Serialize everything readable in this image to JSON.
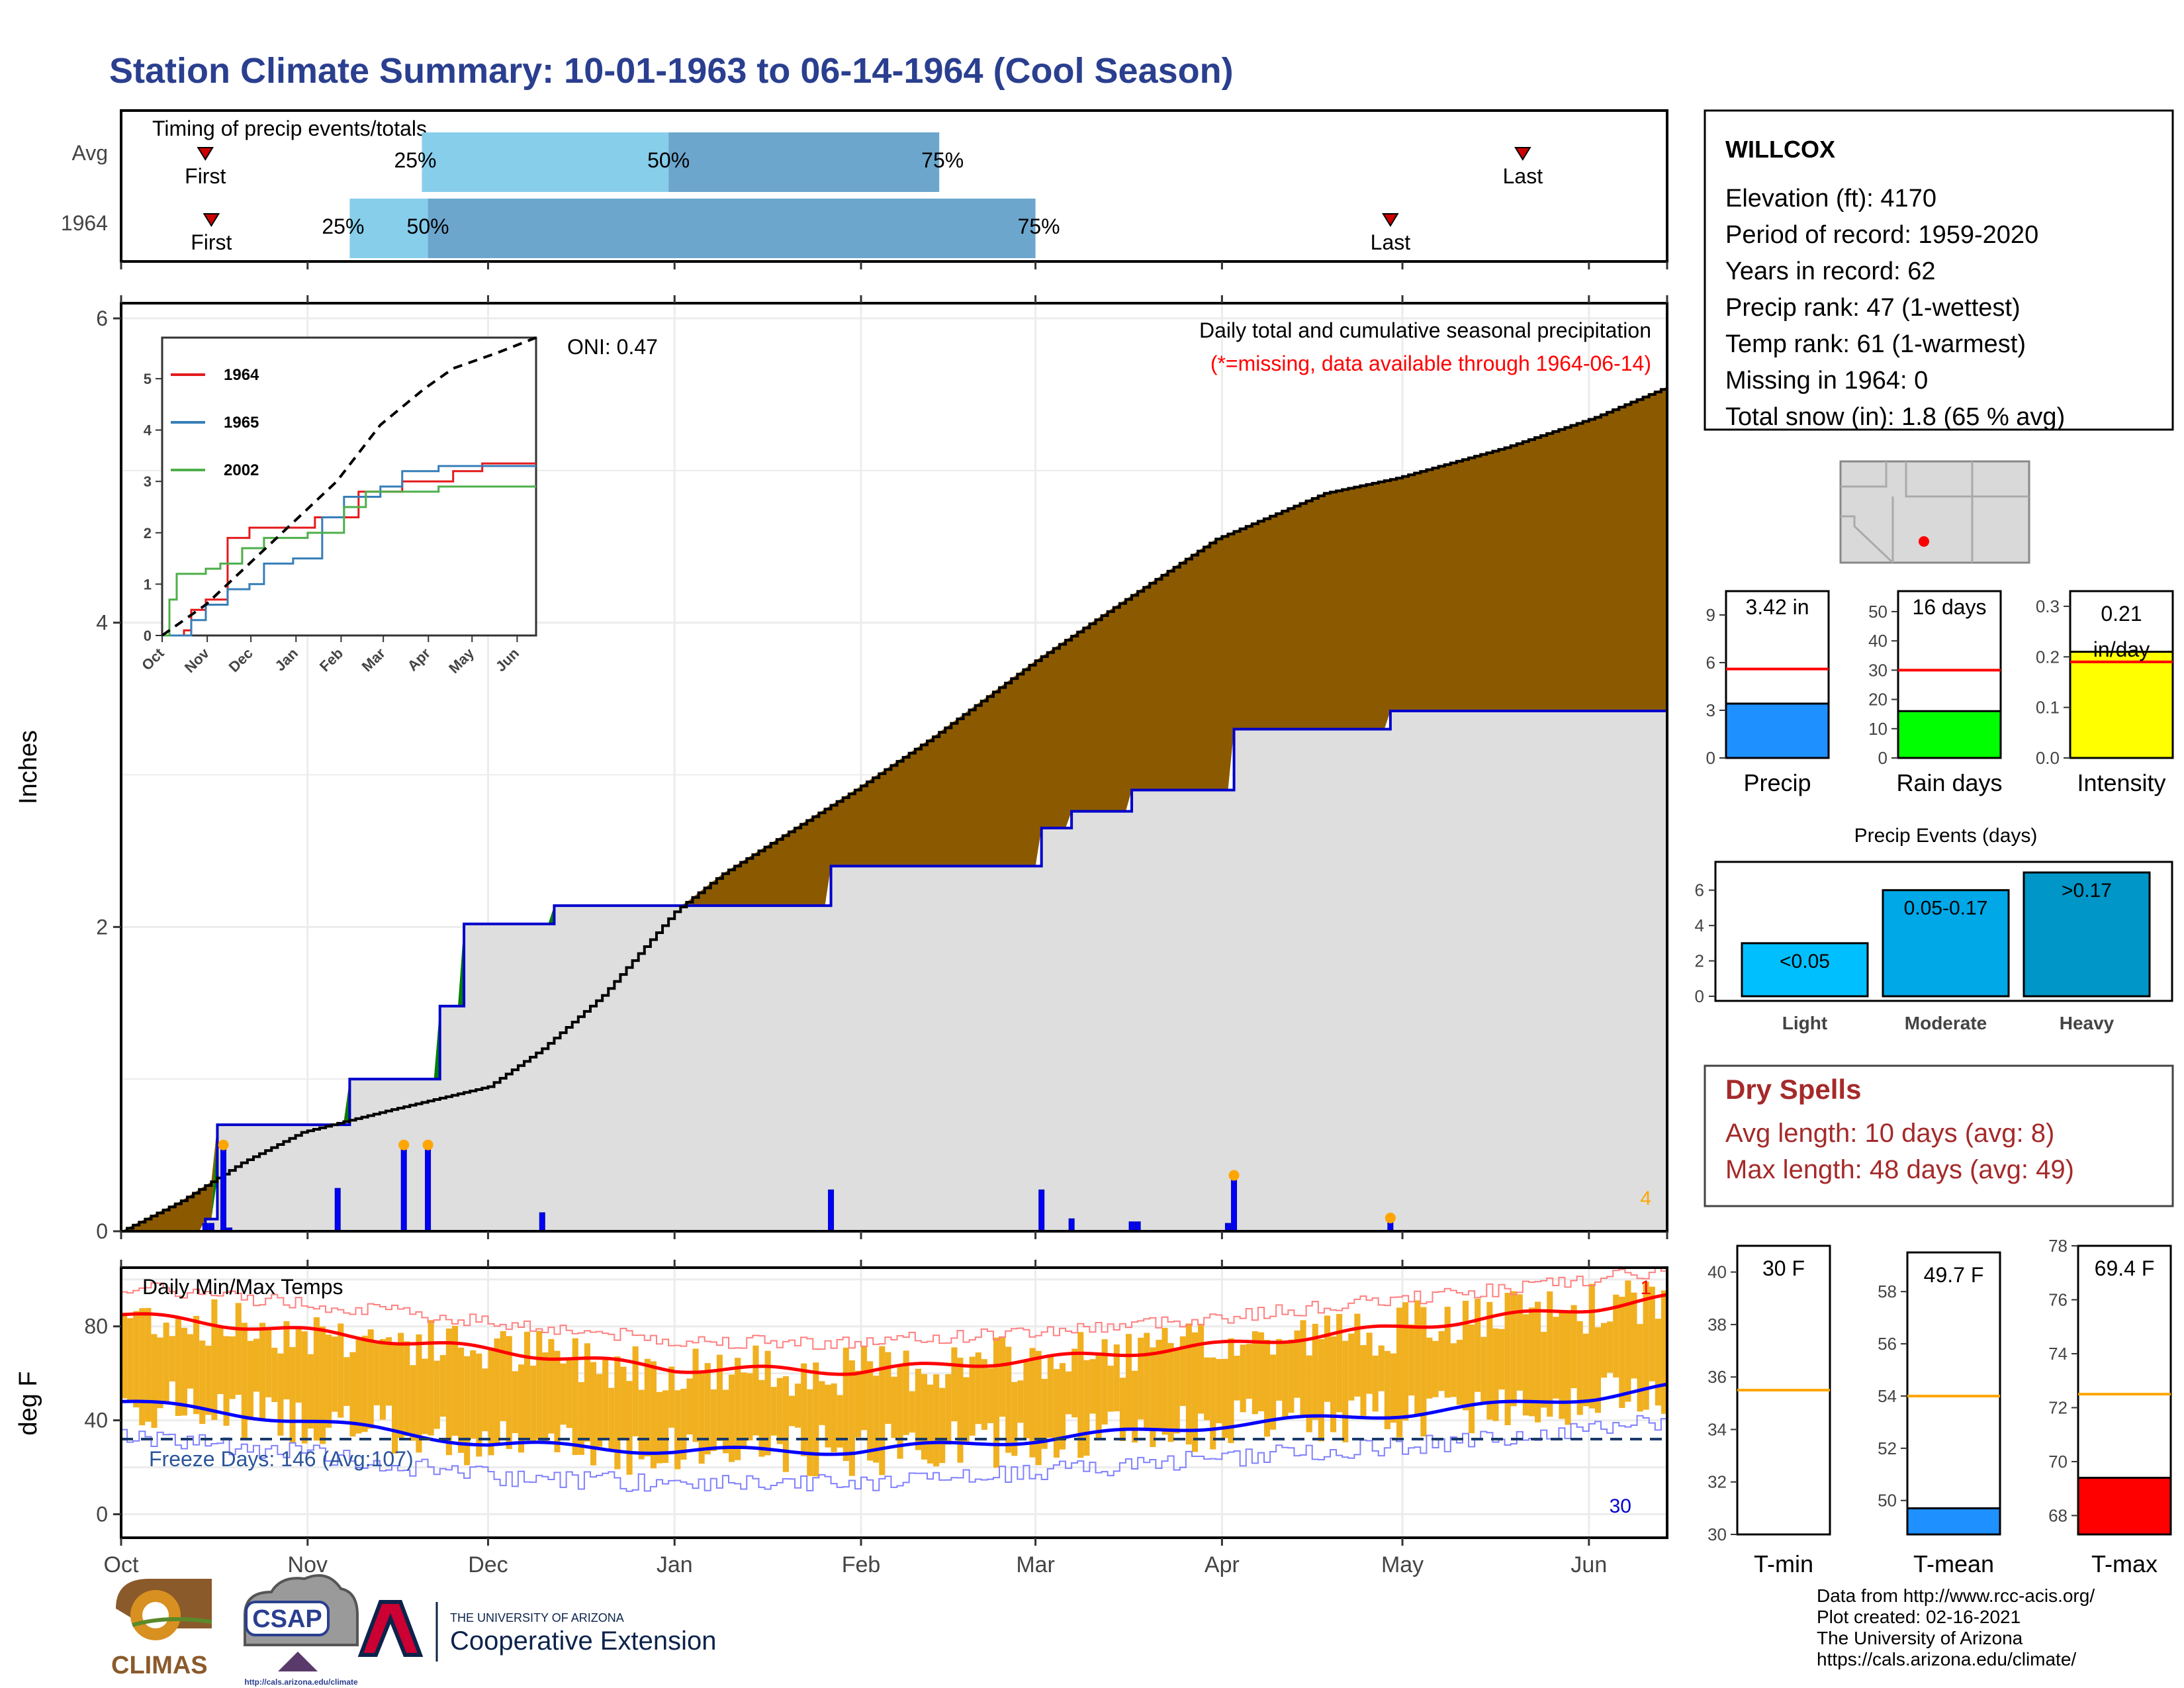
{
  "title": "Station Climate Summary: 10-01-1963 to 06-14-1964 (Cool Season)",
  "colors": {
    "title": "#2a3f8f",
    "precip_bar": "#1e90ff",
    "rain_bar": "#00ff00",
    "intensity_bar": "#ffff00",
    "avg_line": "#ff0000",
    "brown": "#8b5a00",
    "green": "#008000",
    "gray": "#dedede",
    "tmax": "#ff0000",
    "tmin": "#0000ff",
    "temp_bar": "#f0b020",
    "light": "#00bfff",
    "moderate": "#00a8e8",
    "heavy": "#0096c7",
    "tmean": "#1e90ff",
    "tmax_bar": "#ff0000",
    "ref_line": "#ffa500"
  },
  "timing": {
    "title": "Timing of precip events/totals",
    "rows": [
      {
        "label": "Avg",
        "first": "First",
        "last": "Last",
        "p25": "25%",
        "p50": "50%",
        "p75": "75%"
      },
      {
        "label": "1964",
        "first": "First",
        "last": "Last",
        "p25": "25%",
        "p50": "50%",
        "p75": "75%"
      }
    ]
  },
  "station": {
    "name": "WILLCOX",
    "lines": [
      "Elevation (ft): 4170",
      "Period of record: 1959-2020",
      "Years in record: 62",
      "Precip rank: 47 (1-wettest)",
      "Temp rank: 61 (1-warmest)",
      "Missing in 1964: 0",
      "Total snow (in): 1.8 (65 % avg)"
    ]
  },
  "precip_panel": {
    "ylabel": "Inches",
    "yticks": [
      "0",
      "2",
      "4",
      "6"
    ],
    "note1": "Daily total and cumulative seasonal precipitation",
    "note2": "(*=missing, data available through 1964-06-14)",
    "oni": "ONI: 0.47",
    "corner_count": "4"
  },
  "inset": {
    "yticks": [
      "0",
      "1",
      "2",
      "3",
      "4",
      "5"
    ],
    "xticks": [
      "Oct",
      "Nov",
      "Dec",
      "Jan",
      "Feb",
      "Mar",
      "Apr",
      "May",
      "Jun"
    ],
    "legend": [
      {
        "name": "1964",
        "color": "#e41a1c"
      },
      {
        "name": "1965",
        "color": "#377eb8"
      },
      {
        "name": "2002",
        "color": "#4daf4a"
      }
    ]
  },
  "temp_panel": {
    "ylabel": "deg F",
    "title": "Daily Min/Max Temps",
    "yticks": [
      "0",
      "40",
      "80"
    ],
    "freeze": "Freeze Days: 146 (Avg:107)",
    "count_max": "1",
    "count_min": "30"
  },
  "months": [
    "Oct",
    "Nov",
    "Dec",
    "Jan",
    "Feb",
    "Mar",
    "Apr",
    "May",
    "Jun"
  ],
  "mini_precip": [
    {
      "label": "Precip",
      "value_text": "3.42 in",
      "yticks": [
        "0",
        "3",
        "6",
        "9"
      ]
    },
    {
      "label": "Rain days",
      "value_text": "16 days",
      "yticks": [
        "0",
        "10",
        "20",
        "30",
        "40",
        "50"
      ]
    },
    {
      "label": "Intensity",
      "value_text": "0.21 in/day",
      "yticks": [
        "0.0",
        "0.1",
        "0.2",
        "0.3"
      ]
    }
  ],
  "events": {
    "title": "Precip Events (days)",
    "yticks": [
      "0",
      "2",
      "4",
      "6"
    ],
    "bars": [
      {
        "cat": "Light",
        "label": "<0.05"
      },
      {
        "cat": "Moderate",
        "label": "0.05-0.17"
      },
      {
        "cat": "Heavy",
        "label": ">0.17"
      }
    ]
  },
  "dry": {
    "title": "Dry Spells",
    "avg": "Avg length: 10 days (avg: 8)",
    "max": "Max length: 48 days (avg: 49)"
  },
  "mini_temp": [
    {
      "label": "T-min",
      "value_text": "30 F",
      "yticks": [
        "30",
        "32",
        "34",
        "36",
        "38",
        "40"
      ]
    },
    {
      "label": "T-mean",
      "value_text": "49.7 F",
      "yticks": [
        "50",
        "52",
        "54",
        "56",
        "58"
      ]
    },
    {
      "label": "T-max",
      "value_text": "69.4 F",
      "yticks": [
        "68",
        "70",
        "72",
        "74",
        "76",
        "78"
      ]
    }
  ],
  "footer": {
    "lines": [
      "Data from http://www.rcc-acis.org/",
      "Plot created: 02-16-2021",
      "The University of Arizona",
      "https://cals.arizona.edu/climate/"
    ]
  },
  "logos": {
    "climas": "CLIMAS",
    "csap": "CSAP",
    "csap_url": "http://cals.arizona.edu/climate",
    "ua_top": "THE UNIVERSITY OF ARIZONA",
    "ua_bottom": "Cooperative Extension"
  },
  "chart_data": [
    {
      "type": "area",
      "name": "timing",
      "rows": [
        {
          "label": "Avg",
          "first": "10-15",
          "p25": "11-20",
          "p50": "12-31",
          "p75": "02-14",
          "last": "05-21"
        },
        {
          "label": "1964",
          "first": "10-16",
          "p25": "11-08",
          "p50": "11-21",
          "p75": "03-01",
          "last": "04-29"
        }
      ]
    },
    {
      "type": "area",
      "name": "cumulative_precip",
      "ylim": [
        0,
        6
      ],
      "x_unit": "days since Oct 1",
      "avg_cumulative": [
        [
          0,
          0
        ],
        [
          10,
          0.2
        ],
        [
          20,
          0.45
        ],
        [
          30,
          0.65
        ],
        [
          45,
          0.8
        ],
        [
          61,
          0.95
        ],
        [
          70,
          1.2
        ],
        [
          80,
          1.55
        ],
        [
          92,
          2.1
        ],
        [
          100,
          2.35
        ],
        [
          110,
          2.6
        ],
        [
          122,
          2.9
        ],
        [
          135,
          3.25
        ],
        [
          152,
          3.75
        ],
        [
          165,
          4.1
        ],
        [
          182,
          4.55
        ],
        [
          200,
          4.85
        ],
        [
          212,
          4.95
        ],
        [
          230,
          5.15
        ],
        [
          245,
          5.35
        ],
        [
          257,
          5.55
        ]
      ],
      "season_cumulative": [
        [
          0,
          0
        ],
        [
          14,
          0.08
        ],
        [
          16,
          0.7
        ],
        [
          38,
          0.7
        ],
        [
          38,
          1.0
        ],
        [
          53,
          1.0
        ],
        [
          53,
          1.48
        ],
        [
          57,
          1.48
        ],
        [
          57,
          2.02
        ],
        [
          72,
          2.02
        ],
        [
          72,
          2.14
        ],
        [
          118,
          2.14
        ],
        [
          118,
          2.4
        ],
        [
          153,
          2.4
        ],
        [
          153,
          2.65
        ],
        [
          158,
          2.65
        ],
        [
          158,
          2.76
        ],
        [
          168,
          2.76
        ],
        [
          168,
          2.9
        ],
        [
          185,
          2.9
        ],
        [
          185,
          3.3
        ],
        [
          211,
          3.3
        ],
        [
          211,
          3.42
        ],
        [
          257,
          3.42
        ]
      ],
      "daily_bars": [
        [
          14,
          0.05
        ],
        [
          15,
          0.05
        ],
        [
          17,
          0.55
        ],
        [
          18,
          0.02
        ],
        [
          36,
          0.28
        ],
        [
          47,
          0.55
        ],
        [
          51,
          0.55
        ],
        [
          70,
          0.12
        ],
        [
          118,
          0.27
        ],
        [
          153,
          0.27
        ],
        [
          158,
          0.08
        ],
        [
          168,
          0.06
        ],
        [
          169,
          0.06
        ],
        [
          184,
          0.05
        ],
        [
          185,
          0.35
        ],
        [
          211,
          0.07
        ]
      ]
    },
    {
      "type": "line",
      "name": "inset_cumulative",
      "ylim": [
        0,
        5.8
      ],
      "series": [
        {
          "name": "1964",
          "values": [
            [
              0,
              0
            ],
            [
              15,
              0.1
            ],
            [
              20,
              0.5
            ],
            [
              30,
              0.7
            ],
            [
              45,
              0.7
            ],
            [
              45,
              1.9
            ],
            [
              60,
              2.1
            ],
            [
              75,
              2.1
            ],
            [
              105,
              2.3
            ],
            [
              135,
              2.8
            ],
            [
              165,
              3.0
            ],
            [
              200,
              3.2
            ],
            [
              220,
              3.35
            ],
            [
              257,
              3.35
            ]
          ]
        },
        {
          "name": "1965",
          "values": [
            [
              0,
              0
            ],
            [
              20,
              0.3
            ],
            [
              30,
              0.6
            ],
            [
              45,
              0.9
            ],
            [
              60,
              1.0
            ],
            [
              70,
              1.4
            ],
            [
              90,
              1.5
            ],
            [
              110,
              2.3
            ],
            [
              125,
              2.7
            ],
            [
              150,
              2.9
            ],
            [
              165,
              3.2
            ],
            [
              190,
              3.3
            ],
            [
              257,
              3.3
            ]
          ]
        },
        {
          "name": "2002",
          "values": [
            [
              0,
              0
            ],
            [
              5,
              0.7
            ],
            [
              10,
              1.2
            ],
            [
              30,
              1.3
            ],
            [
              40,
              1.4
            ],
            [
              55,
              1.7
            ],
            [
              70,
              1.9
            ],
            [
              100,
              2.0
            ],
            [
              125,
              2.5
            ],
            [
              140,
              2.8
            ],
            [
              170,
              2.8
            ],
            [
              190,
              2.9
            ],
            [
              257,
              2.9
            ]
          ]
        },
        {
          "name": "",
          "values": [
            [
              0,
              0
            ],
            [
              30,
              0.6
            ],
            [
              60,
              1.4
            ],
            [
              90,
              2.2
            ],
            [
              120,
              3.0
            ],
            [
              150,
              4.1
            ],
            [
              180,
              4.8
            ],
            [
              200,
              5.2
            ],
            [
              230,
              5.5
            ],
            [
              257,
              5.8
            ]
          ]
        }
      ]
    },
    {
      "type": "line",
      "name": "daily_temps",
      "ylim": [
        -10,
        105
      ],
      "series": [
        {
          "name": "avg_max",
          "values": [
            [
              0,
              85
            ],
            [
              30,
              78
            ],
            [
              61,
              70
            ],
            [
              92,
              62
            ],
            [
              122,
              61
            ],
            [
              153,
              66
            ],
            [
              183,
              72
            ],
            [
              214,
              80
            ],
            [
              245,
              88
            ],
            [
              257,
              92
            ]
          ]
        },
        {
          "name": "avg_min",
          "values": [
            [
              0,
              48
            ],
            [
              30,
              40
            ],
            [
              61,
              30
            ],
            [
              92,
              27
            ],
            [
              122,
              27
            ],
            [
              153,
              32
            ],
            [
              183,
              38
            ],
            [
              214,
              43
            ],
            [
              245,
              50
            ],
            [
              257,
              54
            ]
          ]
        }
      ],
      "freeze_line": 32
    },
    {
      "type": "bar",
      "name": "season_precip",
      "categories": [
        "Precip",
        "Rain days",
        "Intensity"
      ],
      "values": [
        3.42,
        16,
        0.21
      ],
      "averages": [
        5.6,
        30,
        0.19
      ],
      "ylims": [
        [
          0,
          10.5
        ],
        [
          0,
          57
        ],
        [
          0,
          0.33
        ]
      ]
    },
    {
      "type": "bar",
      "name": "precip_events",
      "categories": [
        "Light",
        "Moderate",
        "Heavy"
      ],
      "values": [
        3,
        6,
        7
      ],
      "ylim": [
        0,
        7.3
      ]
    },
    {
      "type": "bar",
      "name": "season_temps",
      "categories": [
        "T-min",
        "T-mean",
        "T-max"
      ],
      "values": [
        30,
        49.7,
        69.4
      ],
      "averages": [
        35.5,
        54.0,
        72.5
      ],
      "ylims": [
        [
          30,
          41
        ],
        [
          48.7,
          59.5
        ],
        [
          67.3,
          78
        ]
      ]
    }
  ]
}
